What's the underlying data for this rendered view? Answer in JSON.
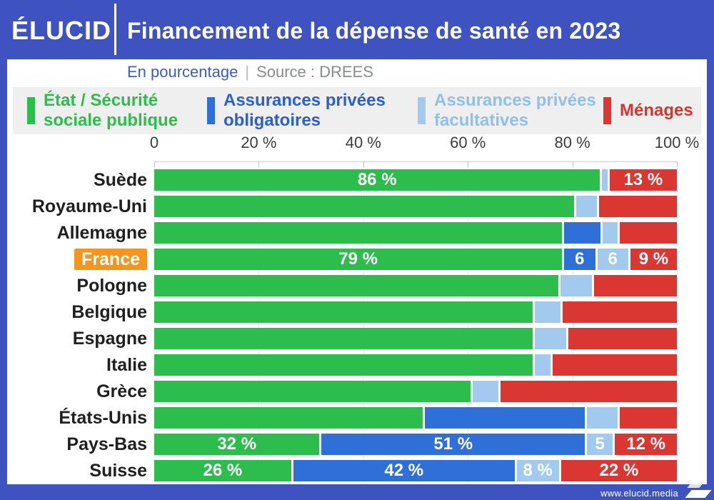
{
  "header": {
    "brand": "ÉLUCID",
    "title": "Financement de la dépense de santé en 2023"
  },
  "subtitle": {
    "unit": "En pourcentage",
    "separator": "|",
    "source": "Source : DREES"
  },
  "legend": {
    "items": [
      {
        "id": "public",
        "label": "État / Sécurité\nsociale publique",
        "color": "#2DBD4D",
        "text_color": "#2DBD4D"
      },
      {
        "id": "compulsory",
        "label": "Assurances privées\nobligatoires",
        "color": "#2E6FD8",
        "text_color": "#2A5FD0"
      },
      {
        "id": "voluntary",
        "label": "Assurances privées\nfacultatives",
        "color": "#A2CAEF",
        "text_color": "#8FC0EC"
      },
      {
        "id": "households",
        "label": "Ménages",
        "color": "#DA3732",
        "text_color": "#D6342E"
      }
    ]
  },
  "axis": {
    "ticks": [
      {
        "value": 0,
        "label": "0"
      },
      {
        "value": 20,
        "label": "20 %"
      },
      {
        "value": 40,
        "label": "40 %"
      },
      {
        "value": 60,
        "label": "60 %"
      },
      {
        "value": 80,
        "label": "80 %"
      },
      {
        "value": 100,
        "label": "100 %"
      }
    ]
  },
  "footer": {
    "website": "www.elucid.media"
  },
  "chart_data": {
    "type": "bar",
    "stacked": true,
    "orientation": "horizontal",
    "title": "Financement de la dépense de santé en 2023",
    "unit": "En pourcentage",
    "source": "Source : DREES",
    "xlim": [
      0,
      100
    ],
    "grid": true,
    "legend_position": "top",
    "series_names": [
      "État / Sécurité sociale publique",
      "Assurances privées obligatoires",
      "Assurances privées facultatives",
      "Ménages"
    ],
    "series_colors": [
      "#2DBD4D",
      "#2E6FD8",
      "#A2CAEF",
      "#DA3732"
    ],
    "highlight_color": "#F7941E",
    "rows": [
      {
        "country": "Suède",
        "highlight": false,
        "values": [
          86,
          0,
          1,
          13
        ],
        "labels": [
          "86 %",
          null,
          null,
          "13 %"
        ]
      },
      {
        "country": "Royaume-Uni",
        "highlight": false,
        "values": [
          81,
          0,
          4,
          15
        ],
        "labels": [
          null,
          null,
          null,
          null
        ]
      },
      {
        "country": "Allemagne",
        "highlight": false,
        "values": [
          79,
          7,
          3,
          11
        ],
        "labels": [
          null,
          null,
          null,
          null
        ]
      },
      {
        "country": "France",
        "highlight": true,
        "values": [
          79,
          6,
          6,
          9
        ],
        "labels": [
          "79 %",
          "6",
          "6",
          "9 %"
        ]
      },
      {
        "country": "Pologne",
        "highlight": false,
        "values": [
          78,
          0,
          6,
          16
        ],
        "labels": [
          null,
          null,
          null,
          null
        ]
      },
      {
        "country": "Belgique",
        "highlight": false,
        "values": [
          73,
          0,
          5,
          22
        ],
        "labels": [
          null,
          null,
          null,
          null
        ]
      },
      {
        "country": "Espagne",
        "highlight": false,
        "values": [
          73,
          0,
          6,
          21
        ],
        "labels": [
          null,
          null,
          null,
          null
        ]
      },
      {
        "country": "Italie",
        "highlight": false,
        "values": [
          73,
          0,
          3,
          24
        ],
        "labels": [
          null,
          null,
          null,
          null
        ]
      },
      {
        "country": "Grèce",
        "highlight": false,
        "values": [
          61,
          0,
          5,
          34
        ],
        "labels": [
          null,
          null,
          null,
          null
        ]
      },
      {
        "country": "États-Unis",
        "highlight": false,
        "values": [
          52,
          31,
          6,
          11
        ],
        "labels": [
          null,
          null,
          null,
          null
        ]
      },
      {
        "country": "Pays-Bas",
        "highlight": false,
        "values": [
          32,
          51,
          5,
          12
        ],
        "labels": [
          "32 %",
          "51 %",
          "5",
          "12 %"
        ]
      },
      {
        "country": "Suisse",
        "highlight": false,
        "values": [
          26,
          42,
          8,
          22
        ],
        "labels": [
          "26 %",
          "42 %",
          "8 %",
          "22 %"
        ]
      }
    ]
  }
}
